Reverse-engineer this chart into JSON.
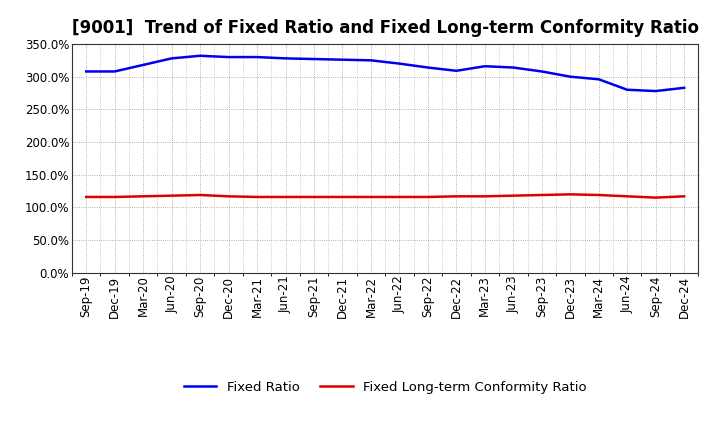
{
  "title": "[9001]  Trend of Fixed Ratio and Fixed Long-term Conformity Ratio",
  "x_labels": [
    "Sep-19",
    "Dec-19",
    "Mar-20",
    "Jun-20",
    "Sep-20",
    "Dec-20",
    "Mar-21",
    "Jun-21",
    "Sep-21",
    "Dec-21",
    "Mar-22",
    "Jun-22",
    "Sep-22",
    "Dec-22",
    "Mar-23",
    "Jun-23",
    "Sep-23",
    "Dec-23",
    "Mar-24",
    "Jun-24",
    "Sep-24",
    "Dec-24"
  ],
  "fixed_ratio": [
    308,
    308,
    318,
    328,
    332,
    330,
    330,
    328,
    327,
    326,
    325,
    320,
    314,
    309,
    316,
    314,
    308,
    300,
    296,
    280,
    278,
    283
  ],
  "fixed_lt_ratio": [
    116,
    116,
    117,
    118,
    119,
    117,
    116,
    116,
    116,
    116,
    116,
    116,
    116,
    117,
    117,
    118,
    119,
    120,
    119,
    117,
    115,
    117
  ],
  "ylim": [
    0,
    350
  ],
  "yticks": [
    0,
    50,
    100,
    150,
    200,
    250,
    300,
    350
  ],
  "line_color_blue": "#0000EE",
  "line_color_red": "#DD0000",
  "background_color": "#ffffff",
  "grid_color": "#999999",
  "legend_fixed_ratio": "Fixed Ratio",
  "legend_fixed_lt": "Fixed Long-term Conformity Ratio",
  "title_fontsize": 12,
  "axis_fontsize": 8.5,
  "legend_fontsize": 9.5
}
